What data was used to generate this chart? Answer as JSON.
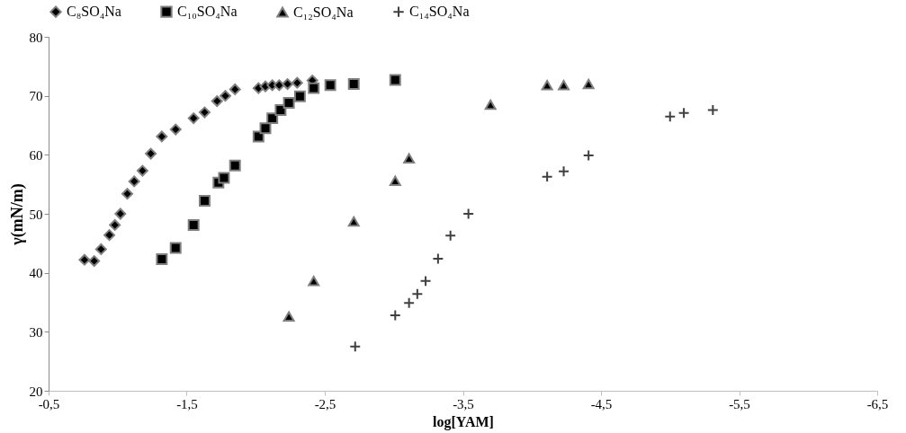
{
  "chart_data": {
    "type": "scatter",
    "xlabel": "log[YAM]",
    "ylabel": "γ(mN/m)",
    "legend": "top",
    "grid": false,
    "xlim": [
      -0.5,
      -6.5
    ],
    "xticks": [
      {
        "value": -0.5,
        "label": "-0,5"
      },
      {
        "value": -1.5,
        "label": "-1,5"
      },
      {
        "value": -2.5,
        "label": "-2,5"
      },
      {
        "value": -3.5,
        "label": "-3,5"
      },
      {
        "value": -4.5,
        "label": "-4,5"
      },
      {
        "value": -5.5,
        "label": "-5,5"
      },
      {
        "value": -6.5,
        "label": "-6,5"
      }
    ],
    "ylim": [
      20,
      80
    ],
    "yticks": [
      20,
      30,
      40,
      50,
      60,
      70,
      80
    ],
    "series": [
      {
        "name": "C₈SO₄Na",
        "color": "#000000",
        "marker": "diamond",
        "x": [
          -0.76,
          -0.83,
          -0.88,
          -0.94,
          -0.98,
          -1.02,
          -1.07,
          -1.12,
          -1.18,
          -1.24,
          -1.32,
          -1.42,
          -1.55,
          -1.63,
          -1.72,
          -1.78,
          -1.85,
          -2.02,
          -2.07,
          -2.12,
          -2.17,
          -2.23,
          -2.3,
          -2.41
        ],
        "values": [
          42.2,
          42,
          44,
          46.4,
          48.1,
          50,
          53.4,
          55.5,
          57.3,
          60.2,
          63.1,
          64.3,
          66.2,
          67.2,
          69.1,
          70,
          71.1,
          71.3,
          71.6,
          71.8,
          71.8,
          72,
          72.2,
          72.6
        ]
      },
      {
        "name": "C₁₀SO₄Na",
        "color": "#000000",
        "marker": "square",
        "x": [
          -1.32,
          -1.42,
          -1.55,
          -1.63,
          -1.73,
          -1.77,
          -1.85,
          -2.02,
          -2.07,
          -2.12,
          -2.18,
          -2.24,
          -2.32,
          -2.42,
          -2.54,
          -2.71,
          -3.01
        ],
        "values": [
          42.3,
          44.2,
          48.1,
          52.2,
          55.3,
          56.1,
          58.2,
          63.1,
          64.5,
          66.2,
          67.6,
          68.8,
          69.9,
          71.3,
          71.8,
          72,
          72.7
        ]
      },
      {
        "name": "C₁₂SO₄Na",
        "color": "#000000",
        "marker": "triangle",
        "x": [
          -2.24,
          -2.42,
          -2.71,
          -3.01,
          -3.11,
          -3.7,
          -4.11,
          -4.23,
          -4.41
        ],
        "values": [
          32.6,
          38.6,
          48.7,
          55.6,
          59.4,
          68.5,
          71.8,
          71.8,
          72
        ]
      },
      {
        "name": "C₁₄SO₄Na",
        "color": "#404040",
        "marker": "cross",
        "x": [
          -2.72,
          -3.01,
          -3.11,
          -3.17,
          -3.23,
          -3.32,
          -3.41,
          -3.54,
          -4.11,
          -4.23,
          -4.41,
          -5.0,
          -5.1,
          -5.31
        ],
        "values": [
          27.5,
          32.8,
          34.9,
          36.4,
          38.6,
          42.4,
          46.3,
          50.0,
          56.3,
          57.2,
          59.9,
          66.5,
          67.1,
          67.6
        ]
      }
    ]
  }
}
